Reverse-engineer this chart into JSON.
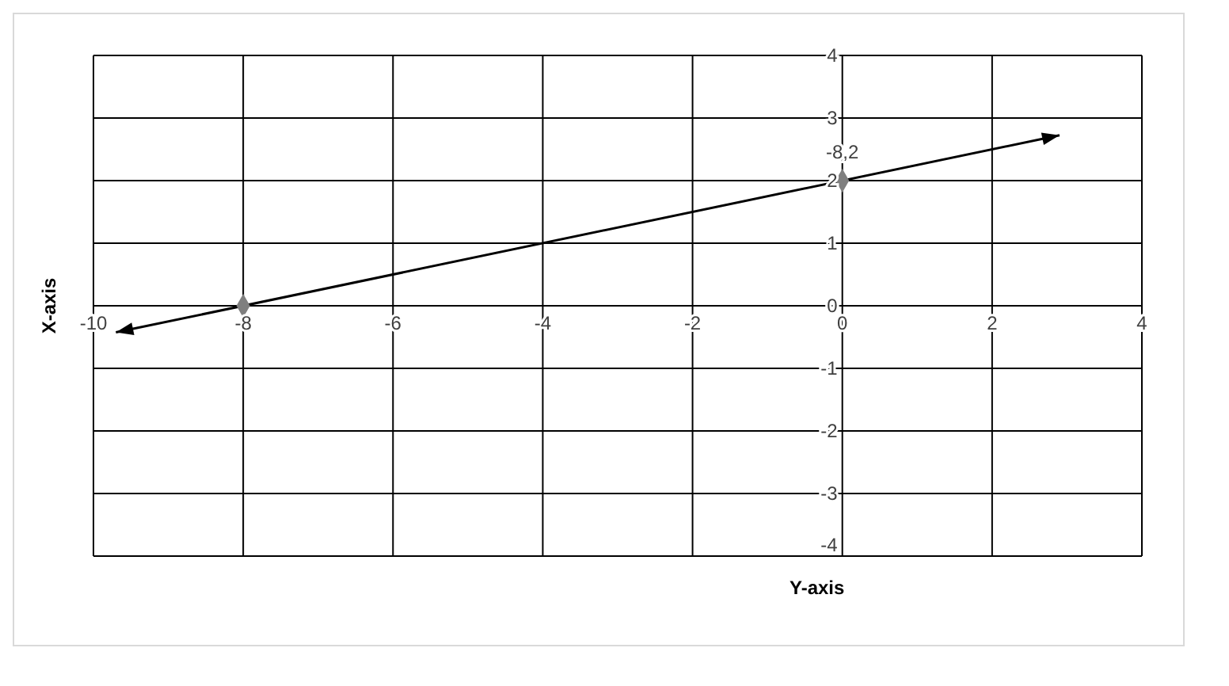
{
  "chart_data": {
    "type": "scatter",
    "xlabel": "Y-axis",
    "ylabel": "X-axis",
    "series": [
      {
        "color": "#7f7f7f",
        "x": [
          -8,
          0
        ],
        "values": [
          0,
          2
        ],
        "marker": "diamond"
      }
    ],
    "annotations": [
      {
        "text": "-8,2",
        "x": 0,
        "y": 2
      }
    ],
    "xlim": [
      -10,
      4
    ],
    "xticks": [
      -10,
      -8,
      -6,
      -4,
      -2,
      0,
      2,
      4
    ],
    "ylim": [
      -4,
      4
    ],
    "yticks": [
      -4,
      -3,
      -2,
      -1,
      0,
      1,
      2,
      3,
      4
    ],
    "grid": true,
    "legend": false
  }
}
